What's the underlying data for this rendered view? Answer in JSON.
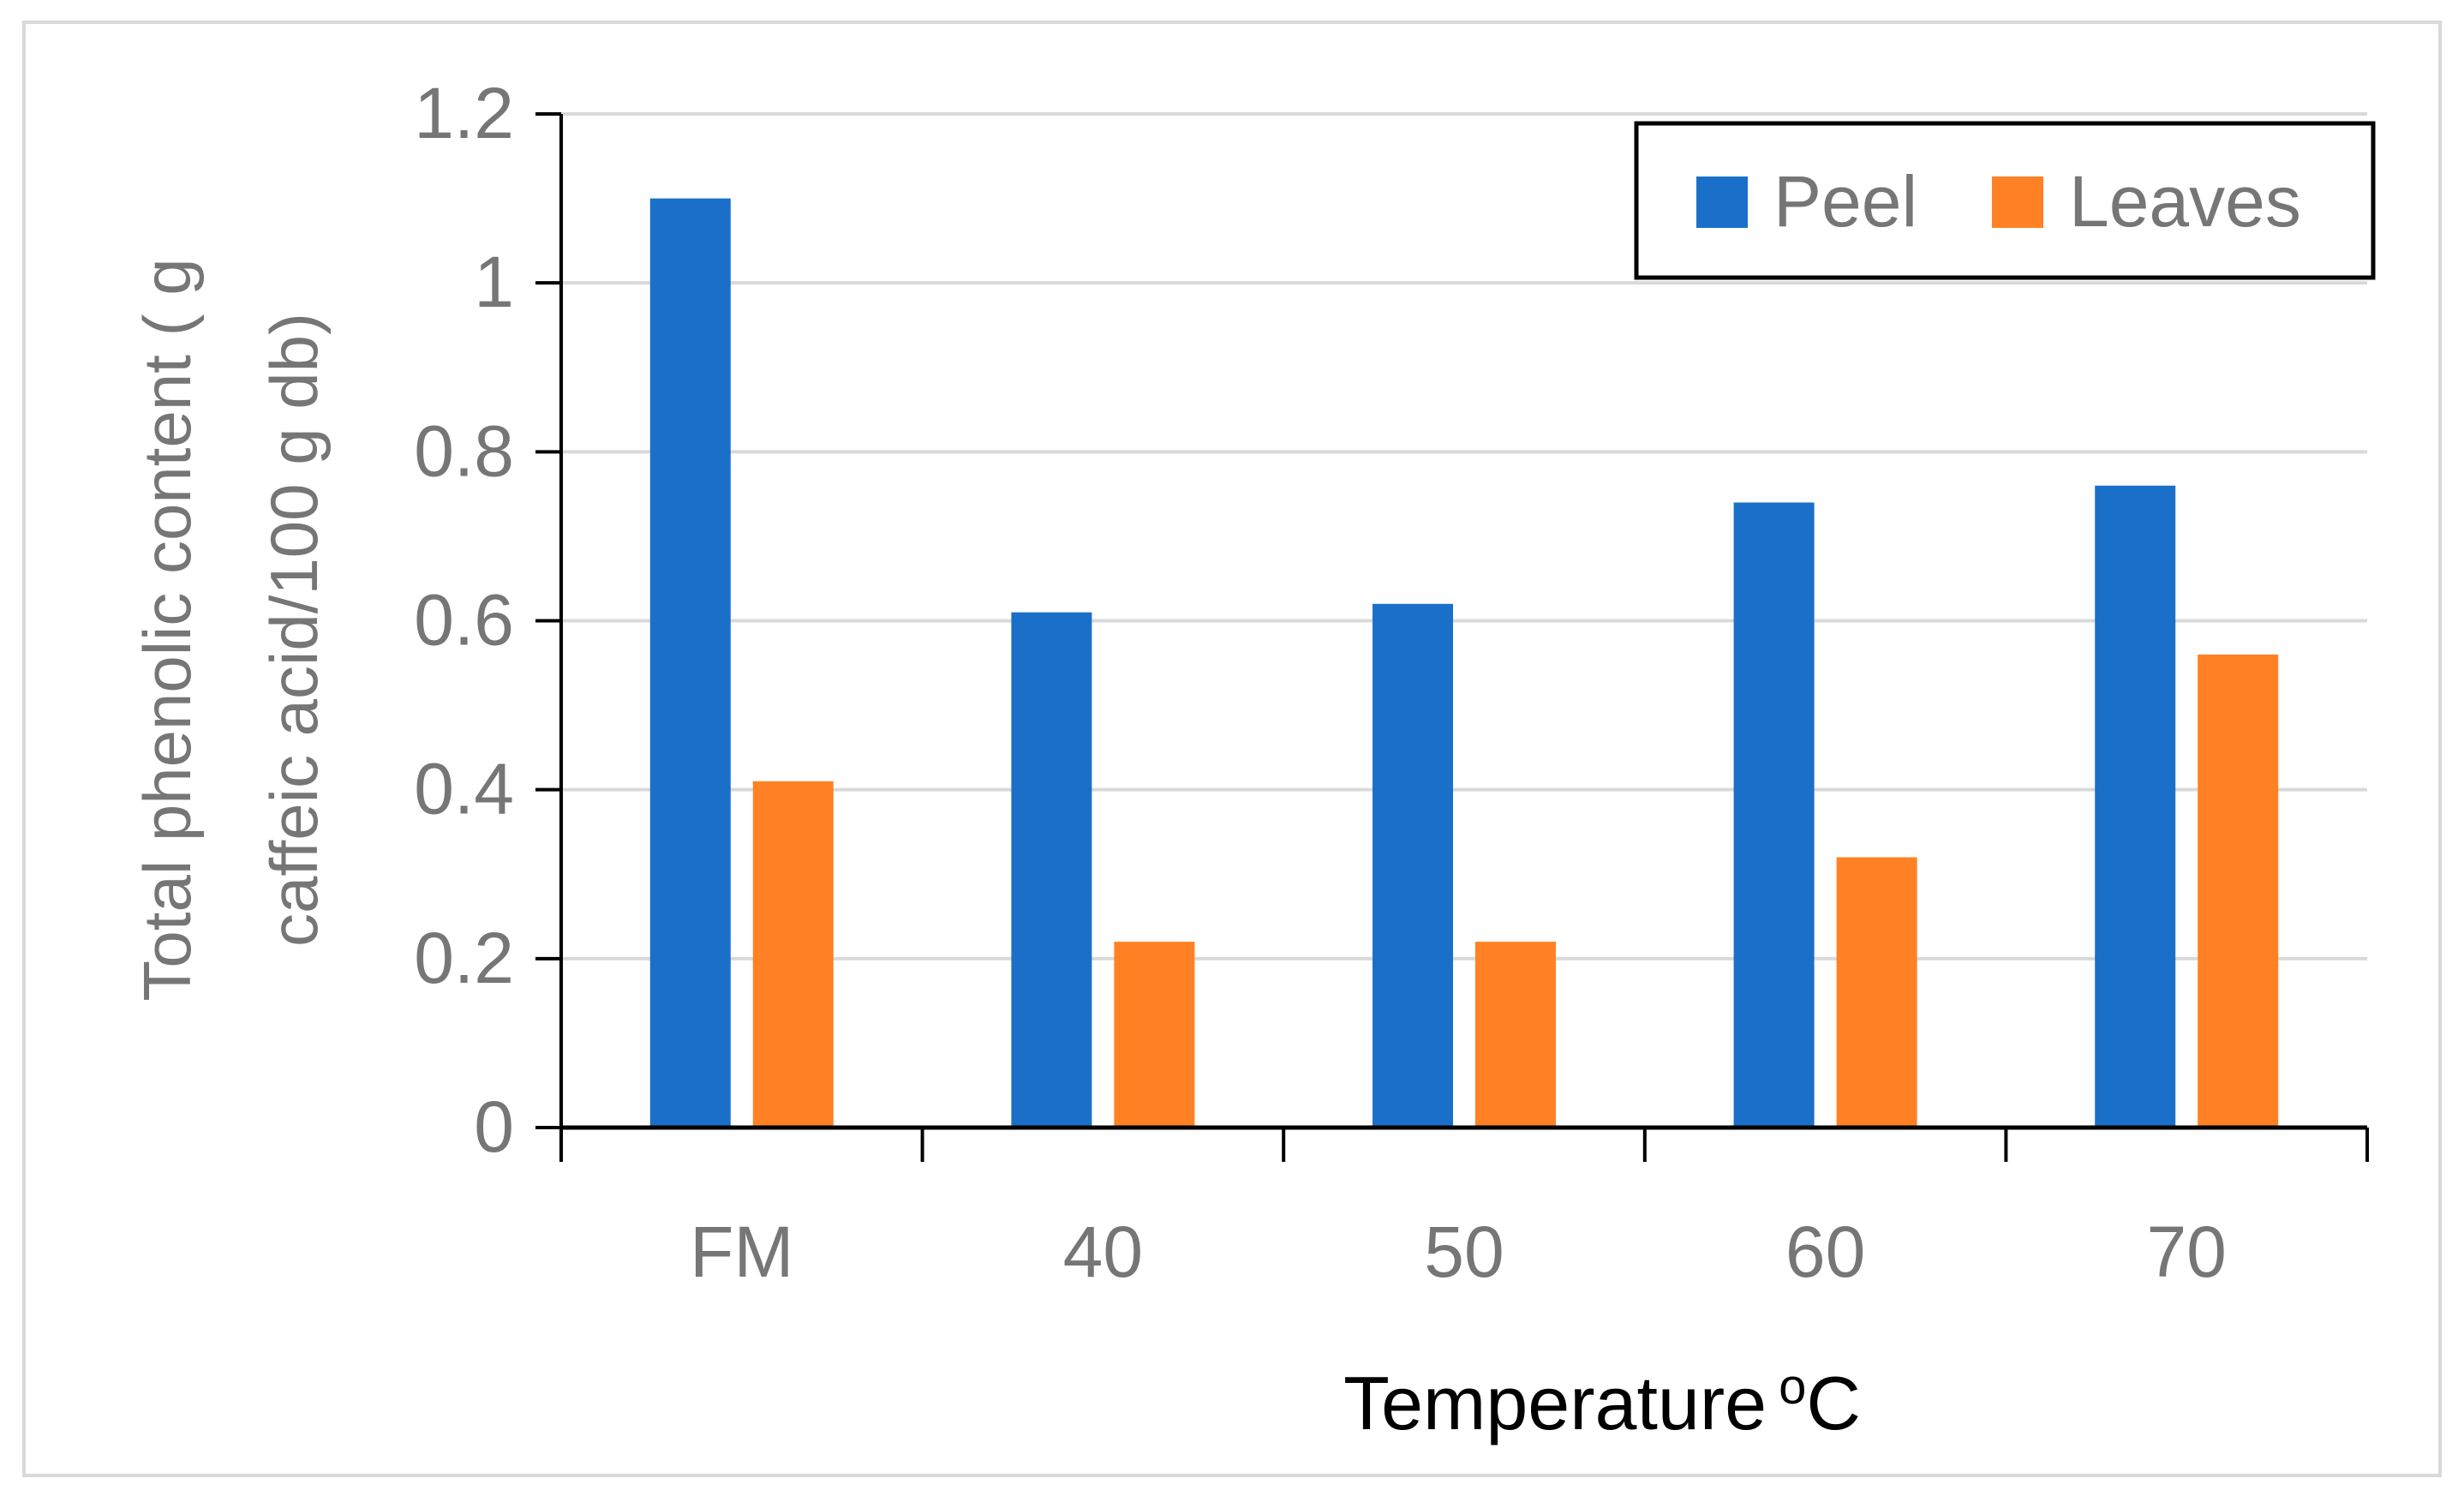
{
  "chart_data": {
    "type": "bar",
    "title": "",
    "categories": [
      "FM",
      "40",
      "50",
      "60",
      "70"
    ],
    "series": [
      {
        "name": "Peel",
        "color": "#1a70c8",
        "values": [
          1.1,
          0.61,
          0.62,
          0.74,
          0.76
        ]
      },
      {
        "name": "Leaves",
        "color": "#ff8124",
        "values": [
          0.41,
          0.22,
          0.22,
          0.32,
          0.56
        ]
      }
    ],
    "xlabel": "Temperature",
    "xlabel_superscript": "o",
    "xlabel_unit": "C",
    "ylabel_line1": "Total phenolic content ( g",
    "ylabel_line2": "caffeic acid/100 g db)",
    "ylim": [
      0,
      1.2
    ],
    "yticks": [
      0,
      0.2,
      0.4,
      0.6,
      0.8,
      1,
      1.2
    ],
    "ytick_labels": [
      "0",
      "0.2",
      "0.4",
      "0.6",
      "0.8",
      "1",
      "1.2"
    ],
    "grid": true,
    "legend_position": "top-right"
  }
}
